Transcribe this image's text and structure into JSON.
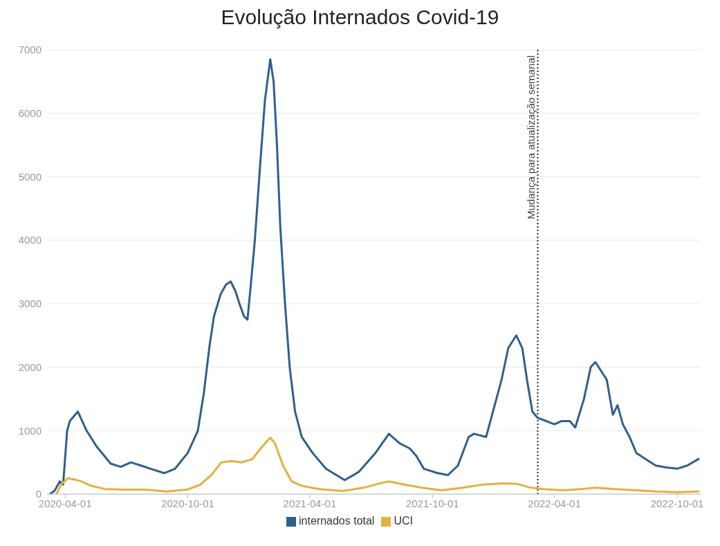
{
  "chart_data": {
    "type": "line",
    "title": "Evolução Internados Covid-19",
    "xlim": [
      "2020-03-05",
      "2022-11-05"
    ],
    "xticks": [
      "2020-04-01",
      "2020-10-01",
      "2021-04-01",
      "2021-10-01",
      "2022-04-01",
      "2022-10-01"
    ],
    "ylim": [
      0,
      7000
    ],
    "yticks": [
      0,
      1000,
      2000,
      3000,
      4000,
      5000,
      6000,
      7000
    ],
    "grid": "y",
    "legend": "bottom",
    "marker": "none",
    "line_style": "solid",
    "ref_lines": [
      {
        "axis": "x",
        "value": "2022-03-07",
        "label": "Mudança para atualização semanal",
        "color": "#222222",
        "line_style": "dotted"
      }
    ],
    "series": [
      {
        "name": "internados total",
        "color": "#2e5f8e",
        "x": [
          "2020-03-09",
          "2020-03-16",
          "2020-03-24",
          "2020-03-29",
          "2020-04-04",
          "2020-04-08",
          "2020-04-20",
          "2020-05-03",
          "2020-05-18",
          "2020-06-08",
          "2020-06-23",
          "2020-07-08",
          "2020-07-23",
          "2020-08-12",
          "2020-08-27",
          "2020-09-12",
          "2020-10-01",
          "2020-10-16",
          "2020-10-25",
          "2020-11-02",
          "2020-11-09",
          "2020-11-19",
          "2020-11-27",
          "2020-12-04",
          "2020-12-11",
          "2020-12-17",
          "2020-12-24",
          "2020-12-29",
          "2021-01-03",
          "2021-01-09",
          "2021-01-17",
          "2021-01-24",
          "2021-02-01",
          "2021-02-06",
          "2021-02-11",
          "2021-02-16",
          "2021-02-23",
          "2021-03-02",
          "2021-03-10",
          "2021-03-20",
          "2021-04-05",
          "2021-04-25",
          "2021-05-23",
          "2021-06-13",
          "2021-07-08",
          "2021-07-28",
          "2021-08-13",
          "2021-08-28",
          "2021-09-07",
          "2021-09-18",
          "2021-10-09",
          "2021-10-24",
          "2021-11-08",
          "2021-11-24",
          "2021-12-02",
          "2021-12-20",
          "2022-01-12",
          "2022-01-22",
          "2022-02-03",
          "2022-02-12",
          "2022-02-19",
          "2022-02-27",
          "2022-03-07",
          "2022-03-20",
          "2022-04-01",
          "2022-04-11",
          "2022-04-24",
          "2022-05-02",
          "2022-05-15",
          "2022-05-25",
          "2022-06-01",
          "2022-06-12",
          "2022-06-18",
          "2022-06-27",
          "2022-07-04",
          "2022-07-12",
          "2022-07-22",
          "2022-08-01",
          "2022-08-15",
          "2022-08-30",
          "2022-09-15",
          "2022-10-01",
          "2022-10-16",
          "2022-11-03"
        ],
        "values": [
          0,
          50,
          200,
          150,
          1000,
          1150,
          1300,
          1000,
          750,
          480,
          430,
          500,
          450,
          380,
          330,
          400,
          650,
          1000,
          1600,
          2300,
          2800,
          3150,
          3300,
          3350,
          3200,
          3000,
          2800,
          2750,
          3300,
          4000,
          5200,
          6200,
          6850,
          6500,
          5500,
          4200,
          3000,
          2000,
          1300,
          900,
          650,
          400,
          220,
          350,
          650,
          950,
          800,
          720,
          600,
          400,
          330,
          300,
          450,
          900,
          950,
          900,
          1800,
          2300,
          2500,
          2300,
          1800,
          1300,
          1200,
          1150,
          1100,
          1150,
          1150,
          1050,
          1500,
          2000,
          2080,
          1900,
          1800,
          1250,
          1400,
          1100,
          900,
          650,
          550,
          450,
          420,
          400,
          450,
          560
        ]
      },
      {
        "name": "UCI",
        "color": "#e3b23c",
        "x": [
          "2020-03-19",
          "2020-03-26",
          "2020-04-05",
          "2020-04-15",
          "2020-04-25",
          "2020-05-10",
          "2020-05-30",
          "2020-06-30",
          "2020-07-30",
          "2020-08-30",
          "2020-09-30",
          "2020-10-20",
          "2020-11-05",
          "2020-11-20",
          "2020-12-05",
          "2020-12-20",
          "2021-01-05",
          "2021-01-20",
          "2021-02-01",
          "2021-02-08",
          "2021-02-20",
          "2021-03-05",
          "2021-03-20",
          "2021-04-15",
          "2021-05-20",
          "2021-06-20",
          "2021-07-15",
          "2021-07-28",
          "2021-08-20",
          "2021-09-15",
          "2021-10-15",
          "2021-11-15",
          "2021-12-15",
          "2022-01-15",
          "2022-02-05",
          "2022-02-25",
          "2022-03-15",
          "2022-04-15",
          "2022-05-10",
          "2022-06-01",
          "2022-06-30",
          "2022-08-01",
          "2022-09-01",
          "2022-10-01",
          "2022-11-03"
        ],
        "values": [
          0,
          150,
          250,
          230,
          200,
          130,
          80,
          70,
          70,
          40,
          70,
          150,
          300,
          500,
          520,
          500,
          550,
          750,
          890,
          800,
          450,
          200,
          130,
          80,
          50,
          100,
          170,
          200,
          150,
          100,
          60,
          100,
          150,
          170,
          160,
          100,
          80,
          60,
          80,
          100,
          80,
          60,
          40,
          30,
          40
        ]
      }
    ]
  }
}
